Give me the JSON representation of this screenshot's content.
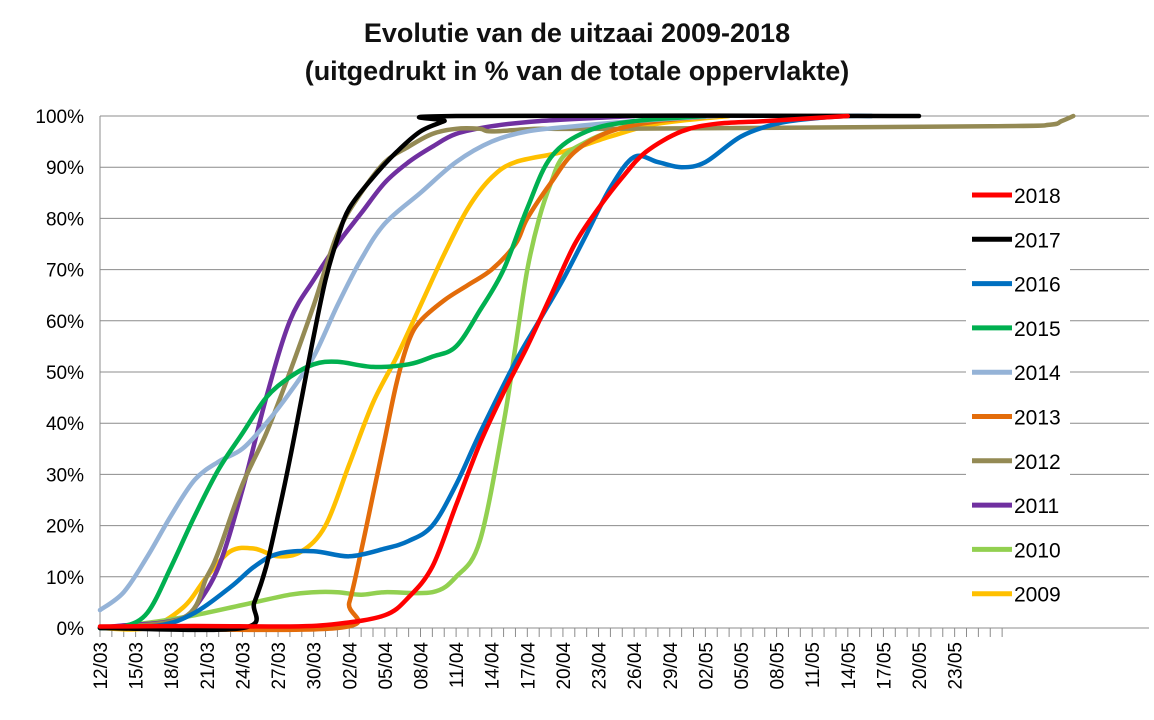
{
  "chart_data": {
    "type": "line",
    "title": "Evolutie van de uitzaai 2009-2018",
    "subtitle": "(uitgedrukt in % van de totale oppervlakte)",
    "xlabel": "",
    "ylabel": "",
    "x_ticks": [
      "12/03",
      "15/03",
      "18/03",
      "21/03",
      "24/03",
      "27/03",
      "30/03",
      "02/04",
      "05/04",
      "08/04",
      "11/04",
      "14/04",
      "17/04",
      "20/04",
      "23/04",
      "26/04",
      "29/04",
      "02/05",
      "05/05",
      "08/05",
      "11/05",
      "14/05",
      "17/05",
      "20/05",
      "23/05"
    ],
    "x_range": [
      "12/03",
      "27/05"
    ],
    "y_ticks": [
      "0%",
      "10%",
      "20%",
      "30%",
      "40%",
      "50%",
      "60%",
      "70%",
      "80%",
      "90%",
      "100%"
    ],
    "ylim": [
      0,
      100
    ],
    "grid": "horizontal",
    "legend_position": "right",
    "series": [
      {
        "name": "2018",
        "color": "#ff0000",
        "points": [
          [
            "12/03",
            0.3
          ],
          [
            "20/03",
            0.4
          ],
          [
            "28/03",
            0.3
          ],
          [
            "01/04",
            0.8
          ],
          [
            "05/04",
            2.5
          ],
          [
            "07/04",
            6
          ],
          [
            "09/04",
            12
          ],
          [
            "11/04",
            24
          ],
          [
            "13/04",
            36
          ],
          [
            "15/04",
            46
          ],
          [
            "17/04",
            55
          ],
          [
            "19/04",
            65
          ],
          [
            "21/04",
            75
          ],
          [
            "23/04",
            82
          ],
          [
            "25/04",
            88
          ],
          [
            "27/04",
            93
          ],
          [
            "30/04",
            97
          ],
          [
            "03/05",
            98.5
          ],
          [
            "07/05",
            99
          ],
          [
            "14/05",
            100
          ]
        ]
      },
      {
        "name": "2017",
        "color": "#000000",
        "points": [
          [
            "12/03",
            0
          ],
          [
            "24/03",
            0
          ],
          [
            "25/03",
            5
          ],
          [
            "26/03",
            12
          ],
          [
            "27/03",
            22
          ],
          [
            "28/03",
            33
          ],
          [
            "29/03",
            45
          ],
          [
            "30/03",
            57
          ],
          [
            "31/03",
            68
          ],
          [
            "01/04",
            76
          ],
          [
            "02/04",
            82
          ],
          [
            "04/04",
            88
          ],
          [
            "06/04",
            93
          ],
          [
            "08/04",
            97
          ],
          [
            "10/04",
            99
          ],
          [
            "11/04",
            100
          ],
          [
            "20/05",
            100
          ]
        ]
      },
      {
        "name": "2016",
        "color": "#0070c0",
        "points": [
          [
            "12/03",
            0
          ],
          [
            "17/03",
            0.5
          ],
          [
            "20/03",
            3
          ],
          [
            "23/03",
            8
          ],
          [
            "25/03",
            12
          ],
          [
            "27/03",
            14.5
          ],
          [
            "30/03",
            15
          ],
          [
            "02/04",
            14
          ],
          [
            "05/04",
            15.5
          ],
          [
            "07/04",
            17
          ],
          [
            "09/04",
            20
          ],
          [
            "11/04",
            28
          ],
          [
            "13/04",
            38
          ],
          [
            "16/04",
            52
          ],
          [
            "18/04",
            60
          ],
          [
            "20/04",
            68
          ],
          [
            "22/04",
            77
          ],
          [
            "24/04",
            86
          ],
          [
            "26/04",
            92
          ],
          [
            "28/04",
            91
          ],
          [
            "30/04",
            90
          ],
          [
            "02/05",
            91
          ],
          [
            "05/05",
            96
          ],
          [
            "08/05",
            98.5
          ],
          [
            "11/05",
            99.5
          ],
          [
            "14/05",
            100
          ],
          [
            "16/05",
            100
          ]
        ]
      },
      {
        "name": "2015",
        "color": "#00b050",
        "points": [
          [
            "12/03",
            0
          ],
          [
            "14/03",
            0.3
          ],
          [
            "16/03",
            3
          ],
          [
            "18/03",
            12
          ],
          [
            "20/03",
            22
          ],
          [
            "22/03",
            31
          ],
          [
            "24/03",
            38
          ],
          [
            "26/03",
            45
          ],
          [
            "28/03",
            49
          ],
          [
            "30/03",
            51.5
          ],
          [
            "01/04",
            52
          ],
          [
            "04/04",
            51
          ],
          [
            "07/04",
            51.5
          ],
          [
            "09/04",
            53
          ],
          [
            "11/04",
            55
          ],
          [
            "13/04",
            62
          ],
          [
            "15/04",
            70
          ],
          [
            "17/04",
            82
          ],
          [
            "19/04",
            92
          ],
          [
            "22/04",
            97
          ],
          [
            "26/04",
            99
          ],
          [
            "02/05",
            100
          ]
        ]
      },
      {
        "name": "2014",
        "color": "#95b3d7",
        "points": [
          [
            "12/03",
            3.5
          ],
          [
            "14/03",
            7
          ],
          [
            "16/03",
            14
          ],
          [
            "18/03",
            22
          ],
          [
            "20/03",
            29
          ],
          [
            "22/03",
            32.5
          ],
          [
            "24/03",
            35
          ],
          [
            "26/03",
            40
          ],
          [
            "28/03",
            46
          ],
          [
            "30/03",
            53
          ],
          [
            "01/04",
            63
          ],
          [
            "03/04",
            72
          ],
          [
            "05/04",
            79
          ],
          [
            "08/04",
            85
          ],
          [
            "11/04",
            91
          ],
          [
            "14/04",
            95
          ],
          [
            "17/04",
            97
          ],
          [
            "21/04",
            98
          ],
          [
            "26/04",
            99
          ],
          [
            "03/05",
            100
          ]
        ]
      },
      {
        "name": "2013",
        "color": "#e36c0a",
        "points": [
          [
            "12/03",
            0
          ],
          [
            "01/04",
            0
          ],
          [
            "02/04",
            5
          ],
          [
            "03/04",
            15
          ],
          [
            "04/04",
            26
          ],
          [
            "05/04",
            37
          ],
          [
            "06/04",
            48
          ],
          [
            "07/04",
            56
          ],
          [
            "08/04",
            60
          ],
          [
            "10/04",
            64
          ],
          [
            "12/04",
            67
          ],
          [
            "14/04",
            70
          ],
          [
            "16/04",
            75
          ],
          [
            "17/04",
            80
          ],
          [
            "19/04",
            87
          ],
          [
            "21/04",
            93
          ],
          [
            "24/04",
            97
          ],
          [
            "28/04",
            99
          ],
          [
            "03/05",
            100
          ]
        ]
      },
      {
        "name": "2012",
        "color": "#948a54",
        "points": [
          [
            "12/03",
            0
          ],
          [
            "19/03",
            2
          ],
          [
            "21/03",
            10
          ],
          [
            "22/03",
            15
          ],
          [
            "24/03",
            28
          ],
          [
            "26/03",
            38
          ],
          [
            "28/03",
            50
          ],
          [
            "30/03",
            63
          ],
          [
            "01/04",
            77
          ],
          [
            "03/04",
            85
          ],
          [
            "05/04",
            91
          ],
          [
            "07/04",
            94
          ],
          [
            "09/04",
            96.5
          ],
          [
            "11/04",
            97.5
          ],
          [
            "13/04",
            97.5
          ],
          [
            "14/04",
            97
          ],
          [
            "18/04",
            97.5
          ],
          [
            "24/04",
            97.5
          ],
          [
            "26/05",
            98
          ],
          [
            "31/05",
            98.3
          ],
          [
            "01/06",
            99
          ],
          [
            "02/06",
            100
          ]
        ]
      },
      {
        "name": "2011",
        "color": "#7030a0",
        "points": [
          [
            "12/03",
            0
          ],
          [
            "14/03",
            0.5
          ],
          [
            "17/03",
            1
          ],
          [
            "19/03",
            2
          ],
          [
            "20/03",
            4
          ],
          [
            "22/03",
            12
          ],
          [
            "24/03",
            27
          ],
          [
            "26/03",
            45
          ],
          [
            "28/03",
            60
          ],
          [
            "30/03",
            68
          ],
          [
            "01/04",
            75
          ],
          [
            "03/04",
            81
          ],
          [
            "05/04",
            87
          ],
          [
            "07/04",
            91
          ],
          [
            "09/04",
            94
          ],
          [
            "11/04",
            96.5
          ],
          [
            "14/04",
            98
          ],
          [
            "18/04",
            99
          ],
          [
            "26/04",
            100
          ]
        ]
      },
      {
        "name": "2010",
        "color": "#92d050",
        "points": [
          [
            "12/03",
            0
          ],
          [
            "16/03",
            1
          ],
          [
            "20/03",
            2.5
          ],
          [
            "24/03",
            4.5
          ],
          [
            "28/03",
            6.5
          ],
          [
            "30/03",
            7
          ],
          [
            "01/04",
            7
          ],
          [
            "03/04",
            6.5
          ],
          [
            "05/04",
            7
          ],
          [
            "09/04",
            7
          ],
          [
            "11/04",
            10
          ],
          [
            "13/04",
            17
          ],
          [
            "15/04",
            40
          ],
          [
            "16/04",
            55
          ],
          [
            "17/04",
            70
          ],
          [
            "18/04",
            80
          ],
          [
            "19/04",
            87
          ],
          [
            "20/04",
            92
          ],
          [
            "22/04",
            95
          ],
          [
            "24/04",
            97
          ],
          [
            "27/04",
            99
          ],
          [
            "01/05",
            100
          ]
        ]
      },
      {
        "name": "2009",
        "color": "#ffc000",
        "points": [
          [
            "12/03",
            0
          ],
          [
            "16/03",
            0
          ],
          [
            "19/03",
            4
          ],
          [
            "21/03",
            10
          ],
          [
            "23/03",
            15
          ],
          [
            "25/03",
            15.5
          ],
          [
            "27/03",
            14
          ],
          [
            "29/03",
            15
          ],
          [
            "31/03",
            20
          ],
          [
            "02/04",
            32
          ],
          [
            "04/04",
            44
          ],
          [
            "06/04",
            53
          ],
          [
            "08/04",
            63
          ],
          [
            "10/04",
            73
          ],
          [
            "12/04",
            82
          ],
          [
            "14/04",
            88
          ],
          [
            "16/04",
            91
          ],
          [
            "20/04",
            93
          ],
          [
            "24/04",
            96
          ],
          [
            "28/04",
            98.5
          ],
          [
            "04/05",
            100
          ]
        ]
      }
    ]
  }
}
